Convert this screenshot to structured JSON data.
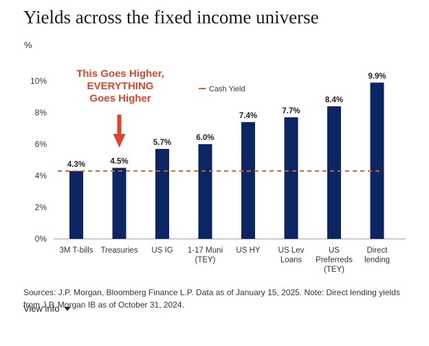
{
  "title": "Yields across the fixed income universe",
  "unit_label": "%",
  "annotation": "This Goes Higher,\nEVERYTHING\nGoes Higher",
  "colors": {
    "bar": "#0c2563",
    "cash_line": "#c8692a",
    "annotation": "#e0452b"
  },
  "chart_data": {
    "type": "bar",
    "title": "Yields across the fixed income universe",
    "ylabel": "%",
    "ylim": [
      0,
      10
    ],
    "yticks": [
      "0%",
      "2%",
      "4%",
      "6%",
      "8%",
      "10%"
    ],
    "ytick_values": [
      0,
      2,
      4,
      6,
      8,
      10
    ],
    "categories": [
      "3M T-bills",
      "Treasuries",
      "US IG",
      "1-17 Muni\n(TEY)",
      "US HY",
      "US Lev\nLoans",
      "US\nPreferreds\n(TEY)",
      "Direct\nlending"
    ],
    "values": [
      4.3,
      4.5,
      5.7,
      6.0,
      7.4,
      7.7,
      8.4,
      9.9
    ],
    "value_labels": [
      "4.3%",
      "4.5%",
      "5.7%",
      "6.0%",
      "7.4%",
      "7.7%",
      "8.4%",
      "9.9%"
    ],
    "reference_line": {
      "name": "Cash Yield",
      "value": 4.3,
      "style": "dashed"
    },
    "legend": {
      "entries": [
        "Cash Yield"
      ],
      "position": "top-center"
    },
    "highlight_category": "Treasuries"
  },
  "footer": {
    "sources": "Sources: J.P. Morgan, Bloomberg Finance L.P. Data as of January 15, 2025. Note: Direct lending yields from J.P. Morgan IB as of October 31, 2024.",
    "view_info": "View info"
  }
}
